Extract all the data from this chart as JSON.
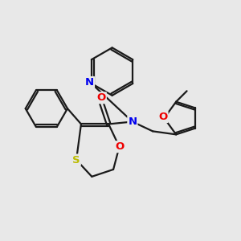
{
  "background_color": "#e8e8e8",
  "bond_color": "#1a1a1a",
  "bond_width": 1.6,
  "atom_colors": {
    "N": "#0000ee",
    "O": "#ee0000",
    "S": "#bbbb00",
    "C": "#1a1a1a"
  },
  "font_size_atom": 9.5,
  "dbo": 0.065
}
